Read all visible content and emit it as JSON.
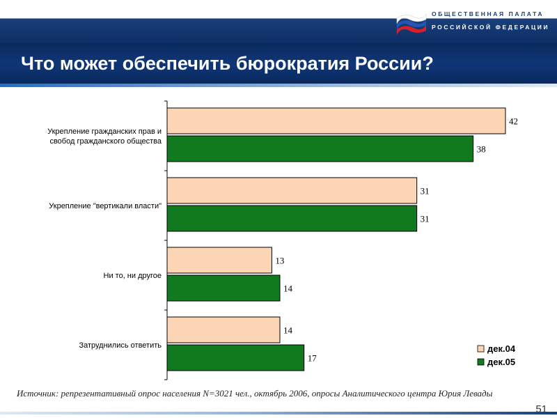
{
  "header": {
    "org_line1": "ОБЩЕСТВЕННАЯ ПАЛАТА",
    "org_line2": "РОССИЙСКОЙ ФЕДЕРАЦИИ",
    "title": "Что может обеспечить бюрократия России?"
  },
  "colors": {
    "series_1": "#fcd5b4",
    "series_2": "#127a1e",
    "bar_border": "#000000"
  },
  "chart_data": {
    "type": "bar",
    "orientation": "horizontal",
    "categories": [
      [
        "Укрепление гражданских прав и",
        "свобод гражданского общества"
      ],
      [
        "Укрепление \"вертикали власти\""
      ],
      [
        "Ни то, ни другое"
      ],
      [
        "Затруднились ответить"
      ]
    ],
    "series": [
      {
        "name": "дек.04",
        "values": [
          42,
          31,
          13,
          14
        ]
      },
      {
        "name": "дек.05",
        "values": [
          38,
          31,
          14,
          17
        ]
      }
    ],
    "xlim": [
      0,
      45
    ],
    "grid": false,
    "legend": "bottom-right"
  },
  "footer": {
    "source": "Источник: репрезентативный опрос населения N=3021 чел., октябрь 2006, опросы Аналитического центра Юрия Левады",
    "page_number": "51"
  }
}
